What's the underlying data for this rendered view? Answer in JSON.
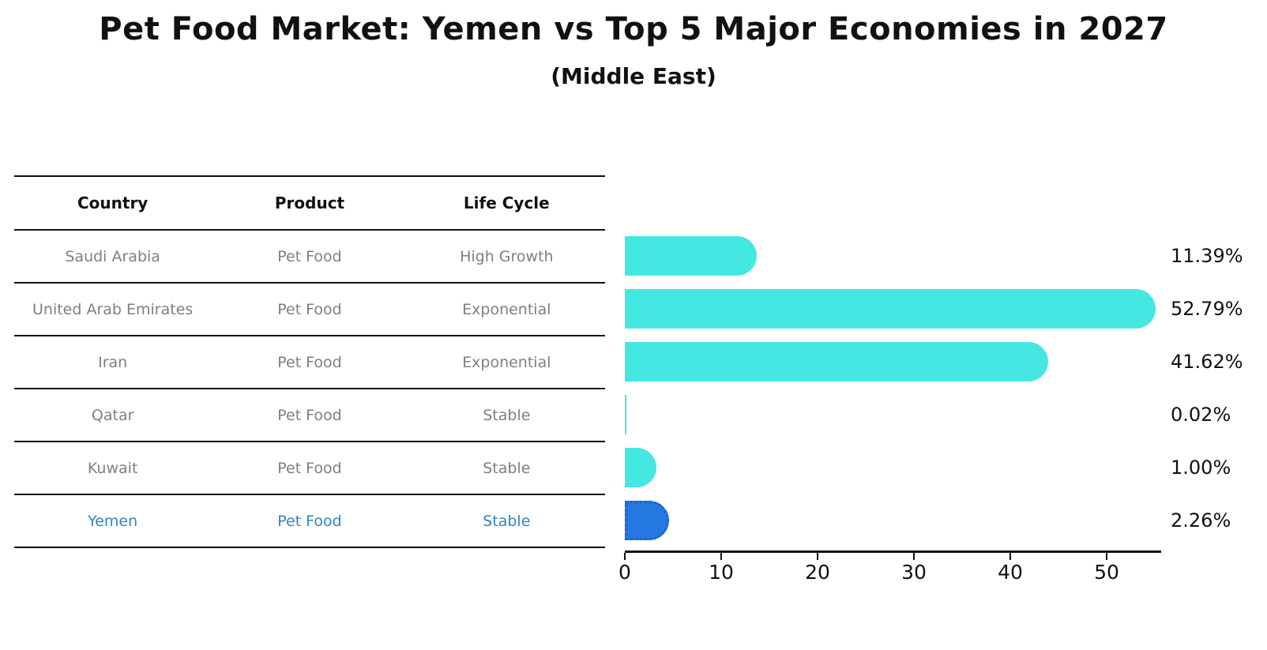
{
  "title": "Pet Food Market: Yemen vs Top 5 Major Economies in 2027",
  "subtitle": "(Middle East)",
  "table": {
    "headers": [
      "Country",
      "Product",
      "Life Cycle"
    ],
    "rows": [
      {
        "country": "Saudi Arabia",
        "product": "Pet Food",
        "life_cycle": "High Growth",
        "highlight": false
      },
      {
        "country": "United Arab Emirates",
        "product": "Pet Food",
        "life_cycle": "Exponential",
        "highlight": false
      },
      {
        "country": "Iran",
        "product": "Pet Food",
        "life_cycle": "Exponential",
        "highlight": false
      },
      {
        "country": "Qatar",
        "product": "Pet Food",
        "life_cycle": "Stable",
        "highlight": false
      },
      {
        "country": "Kuwait",
        "product": "Pet Food",
        "life_cycle": "Stable",
        "highlight": false
      },
      {
        "country": "Yemen",
        "product": "Pet Food",
        "life_cycle": "Stable",
        "highlight": true
      }
    ]
  },
  "chart_data": {
    "type": "bar",
    "orientation": "horizontal",
    "title": "Pet Food Market: Yemen vs Top 5 Major Economies in 2027",
    "subtitle": "(Middle East)",
    "categories": [
      "Saudi Arabia",
      "United Arab Emirates",
      "Iran",
      "Qatar",
      "Kuwait",
      "Yemen"
    ],
    "values": [
      11.39,
      52.79,
      41.62,
      0.02,
      1.0,
      2.26
    ],
    "value_labels": [
      "11.39%",
      "52.79%",
      "41.62%",
      "0.02%",
      "1.00%",
      "2.26%"
    ],
    "x_ticks": [
      0,
      10,
      20,
      30,
      40,
      50
    ],
    "xlim": [
      0,
      56
    ],
    "grid": false,
    "legend": "none",
    "highlight_index": 5
  },
  "colors": {
    "bar-cyan": "#45E7E2",
    "bar-blue": "#2478DF",
    "bar-blue-border": "#1B62D4",
    "yemen-text": "#2E86C8",
    "gray-text": "#7F7F7F"
  }
}
